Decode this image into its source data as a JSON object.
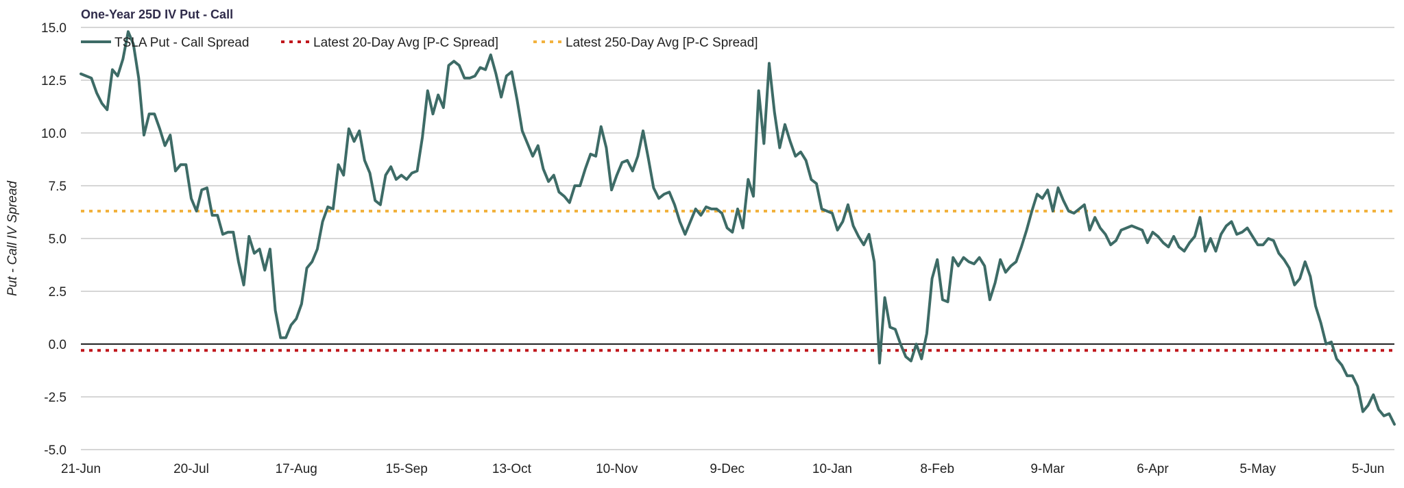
{
  "chart_data": {
    "type": "line",
    "title": "One-Year 25D IV Put - Call",
    "xlabel": "",
    "ylabel": "Put - Call IV Spread",
    "ylim": [
      -5.0,
      15.0
    ],
    "yticks": [
      "15.0",
      "12.5",
      "10.0",
      "7.5",
      "5.0",
      "2.5",
      "0.0",
      "-2.5",
      "-5.0"
    ],
    "ytick_values": [
      15.0,
      12.5,
      10.0,
      7.5,
      5.0,
      2.5,
      0.0,
      -2.5,
      -5.0
    ],
    "x_tick_labels": [
      "21-Jun",
      "20-Jul",
      "17-Aug",
      "15-Sep",
      "13-Oct",
      "10-Nov",
      "9-Dec",
      "10-Jan",
      "8-Feb",
      "9-Mar",
      "6-Apr",
      "5-May",
      "5-Jun"
    ],
    "x_tick_index": [
      0,
      21,
      41,
      62,
      82,
      102,
      123,
      143,
      163,
      184,
      204,
      224,
      245
    ],
    "grid": true,
    "legend_position": "top-left",
    "series": [
      {
        "name": "TSLA Put - Call Spread",
        "color": "#3d6b66",
        "style": "solid",
        "values": [
          12.8,
          12.7,
          12.6,
          11.9,
          11.4,
          11.1,
          13.0,
          12.7,
          13.5,
          14.8,
          14.2,
          12.6,
          9.9,
          10.9,
          10.9,
          10.2,
          9.4,
          9.9,
          8.2,
          8.5,
          8.5,
          6.9,
          6.3,
          7.3,
          7.4,
          6.1,
          6.1,
          5.2,
          5.3,
          5.3,
          3.9,
          2.8,
          5.1,
          4.3,
          4.5,
          3.5,
          4.5,
          1.6,
          0.3,
          0.3,
          0.9,
          1.2,
          1.9,
          3.6,
          3.9,
          4.5,
          5.8,
          6.5,
          6.4,
          8.5,
          8.0,
          10.2,
          9.6,
          10.1,
          8.7,
          8.1,
          6.8,
          6.6,
          8.0,
          8.4,
          7.8,
          8.0,
          7.8,
          8.1,
          8.2,
          9.8,
          12.0,
          10.9,
          11.8,
          11.2,
          13.2,
          13.4,
          13.2,
          12.6,
          12.6,
          12.7,
          13.1,
          13.0,
          13.7,
          12.8,
          11.7,
          12.7,
          12.9,
          11.6,
          10.1,
          9.5,
          8.9,
          9.4,
          8.3,
          7.7,
          8.0,
          7.2,
          7.0,
          6.7,
          7.5,
          7.5,
          8.3,
          9.0,
          8.9,
          10.3,
          9.3,
          7.3,
          8.0,
          8.6,
          8.7,
          8.2,
          8.9,
          10.1,
          8.8,
          7.4,
          6.9,
          7.1,
          7.2,
          6.6,
          5.8,
          5.2,
          5.8,
          6.4,
          6.1,
          6.5,
          6.4,
          6.4,
          6.2,
          5.5,
          5.3,
          6.4,
          5.5,
          7.8,
          7.0,
          12.0,
          9.5,
          13.3,
          11.0,
          9.3,
          10.4,
          9.6,
          8.9,
          9.1,
          8.7,
          7.8,
          7.6,
          6.4,
          6.3,
          6.2,
          5.4,
          5.8,
          6.6,
          5.6,
          5.1,
          4.7,
          5.2,
          3.9,
          -0.9,
          2.2,
          0.8,
          0.7,
          0.0,
          -0.6,
          -0.8,
          0.0,
          -0.7,
          0.5,
          3.1,
          4.0,
          2.1,
          2.0,
          4.1,
          3.7,
          4.1,
          3.9,
          3.8,
          4.1,
          3.7,
          2.1,
          2.9,
          4.0,
          3.4,
          3.7,
          3.9,
          4.6,
          5.4,
          6.3,
          7.1,
          6.9,
          7.3,
          6.3,
          7.4,
          6.8,
          6.3,
          6.2,
          6.4,
          6.6,
          5.4,
          6.0,
          5.5,
          5.2,
          4.7,
          4.9,
          5.4,
          5.5,
          5.6,
          5.5,
          5.4,
          4.8,
          5.3,
          5.1,
          4.8,
          4.6,
          5.1,
          4.6,
          4.4,
          4.8,
          5.1,
          6.0,
          4.4,
          5.0,
          4.4,
          5.2,
          5.6,
          5.8,
          5.2,
          5.3,
          5.5,
          5.1,
          4.7,
          4.7,
          5.0,
          4.9,
          4.3,
          4.0,
          3.6,
          2.8,
          3.1,
          3.9,
          3.2,
          1.8,
          1.0,
          0.0,
          0.1,
          -0.7,
          -1.0,
          -1.5,
          -1.5,
          -2.0,
          -3.2,
          -2.9,
          -2.4,
          -3.1,
          -3.4,
          -3.3,
          -3.8
        ]
      },
      {
        "name": "Latest 20-Day Avg [P-C Spread]",
        "color": "#c0171c",
        "style": "dotted",
        "value": -0.3
      },
      {
        "name": "Latest 250-Day Avg [P-C Spread]",
        "color": "#f2b23e",
        "style": "dotted",
        "value": 6.3
      }
    ]
  }
}
